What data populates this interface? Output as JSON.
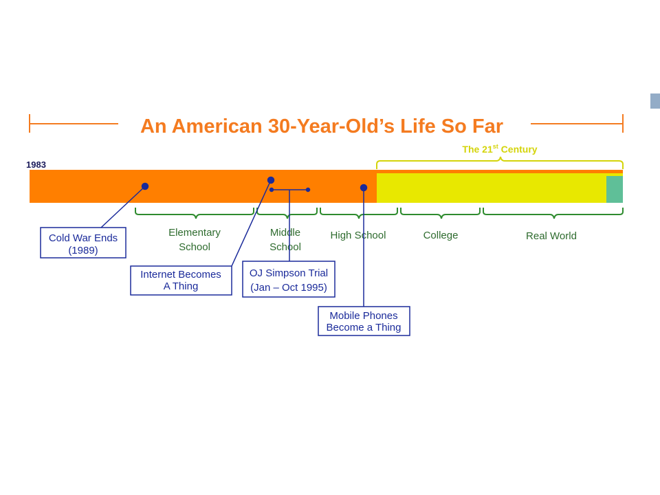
{
  "title": "An American 30-Year-Old’s Life So Far",
  "start_year": "1983",
  "century": {
    "label_prefix": "The 21",
    "label_sup": "st",
    "label_suffix": " Century"
  },
  "periods": [
    "Elementary\nSchool",
    "Middle\nSchool",
    "High School",
    "College",
    "Real World"
  ],
  "events": [
    {
      "label": "Cold War Ends\n(1989)"
    },
    {
      "label": "Internet Becomes\nA Thing"
    },
    {
      "label": "OJ Simpson Trial\n(Jan – Oct 1995)"
    },
    {
      "label": "Mobile Phones\nBecome a Thing"
    }
  ],
  "colors": {
    "title": "#f47b20",
    "bar_orange": "#ff7f00",
    "bar_yellow": "#e8e800",
    "bar_teal": "#5fbf98",
    "century_brace": "#d4d40a",
    "period_brace": "#2e8b2e",
    "period_text": "#2e6b2e",
    "event_line": "#1a2a9a",
    "event_text": "#1a2a9a",
    "corner": "#93acc7"
  }
}
